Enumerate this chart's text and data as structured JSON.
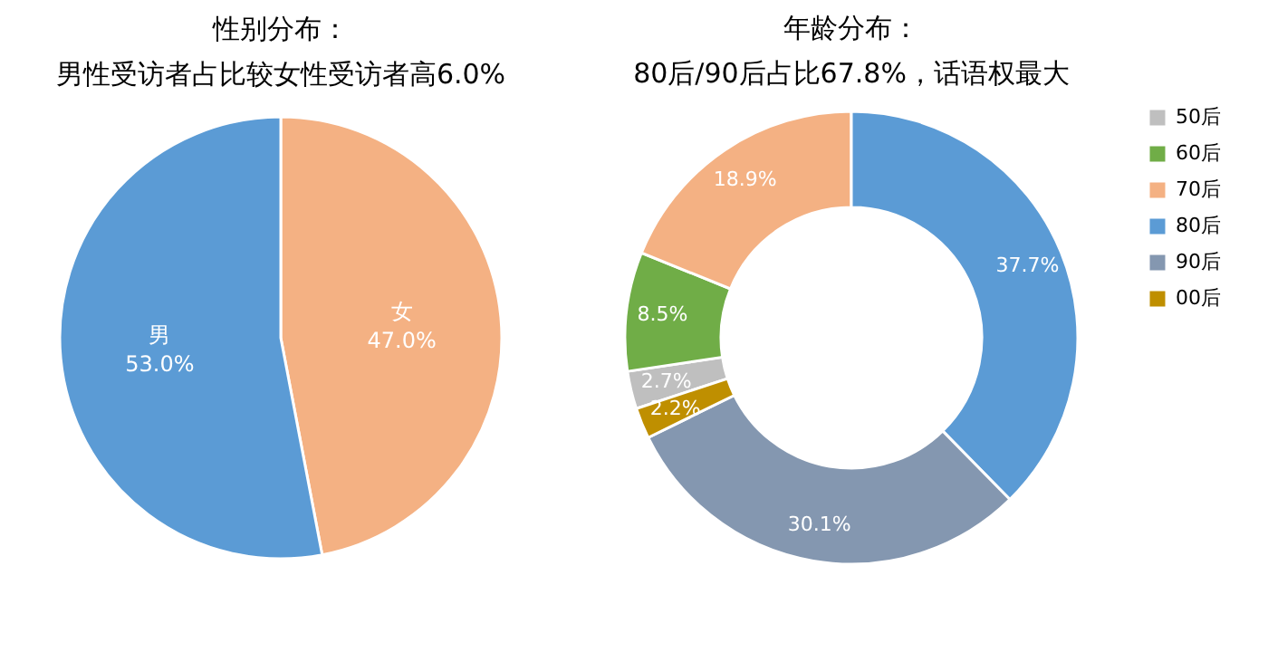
{
  "chart_data": [
    {
      "type": "pie",
      "title": "性别分布：",
      "subtitle": "男性受访者占比较女性受访者高6.0%",
      "categories": [
        "女",
        "男"
      ],
      "values": [
        47.0,
        53.0
      ],
      "colors": [
        "#f4b183",
        "#5b9bd5"
      ],
      "value_labels": [
        "47.0%",
        "53.0%"
      ],
      "legend": false
    },
    {
      "type": "donut",
      "title": "年龄分布：",
      "subtitle": "80后/90后占比67.8%，话语权最大",
      "categories": [
        "50后",
        "60后",
        "70后",
        "80后",
        "90后",
        "00后"
      ],
      "values": [
        2.7,
        8.5,
        18.9,
        37.7,
        30.1,
        2.2
      ],
      "colors": [
        "#bfbfbf",
        "#70ad47",
        "#f4b183",
        "#5b9bd5",
        "#8497b0",
        "#bf8f00"
      ],
      "value_labels": [
        "2.7%",
        "8.5%",
        "18.9%",
        "37.7%",
        "30.1%",
        "2.2%"
      ],
      "legend": "right"
    }
  ]
}
